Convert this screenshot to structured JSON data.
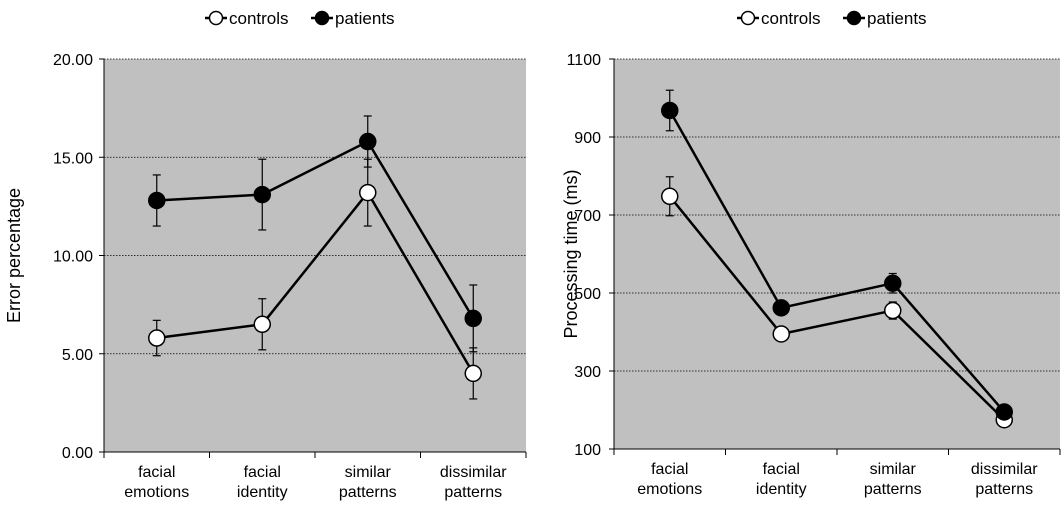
{
  "chart_data": [
    {
      "type": "line",
      "title": "",
      "xlabel": "",
      "ylabel": "Error percentage",
      "categories": [
        [
          "facial",
          "emotions"
        ],
        [
          "facial",
          "identity"
        ],
        [
          "similar",
          "patterns"
        ],
        [
          "dissimilar",
          "patterns"
        ]
      ],
      "yticks": [
        "0.00",
        "5.00",
        "10.00",
        "15.00",
        "20.00"
      ],
      "ylim": [
        0,
        20
      ],
      "grid": "horizontal dotted",
      "legend_position": "top",
      "series": [
        {
          "name": "controls",
          "marker": "open-circle",
          "values": [
            5.8,
            6.5,
            13.2,
            4.0
          ],
          "errors": [
            0.9,
            1.3,
            1.7,
            1.3
          ]
        },
        {
          "name": "patients",
          "marker": "filled-circle",
          "values": [
            12.8,
            13.1,
            15.8,
            6.8
          ],
          "errors": [
            1.3,
            1.8,
            1.3,
            1.7
          ]
        }
      ]
    },
    {
      "type": "line",
      "title": "",
      "xlabel": "",
      "ylabel": "Processing time (ms)",
      "categories": [
        [
          "facial",
          "emotions"
        ],
        [
          "facial",
          "identity"
        ],
        [
          "similar",
          "patterns"
        ],
        [
          "dissimilar",
          "patterns"
        ]
      ],
      "yticks": [
        "100",
        "300",
        "500",
        "700",
        "900",
        "1100"
      ],
      "ylim": [
        100,
        1100
      ],
      "grid": "horizontal dotted",
      "legend_position": "top",
      "series": [
        {
          "name": "controls",
          "marker": "open-circle",
          "values": [
            748,
            395,
            455,
            175
          ],
          "errors": [
            50,
            12,
            22,
            12
          ]
        },
        {
          "name": "patients",
          "marker": "filled-circle",
          "values": [
            968,
            462,
            525,
            195
          ],
          "errors": [
            52,
            15,
            25,
            12
          ]
        }
      ]
    }
  ],
  "colors": {
    "plot_background": "#c0c0c0",
    "line": "#000000",
    "open_marker_fill": "#ffffff",
    "filled_marker_fill": "#000000"
  }
}
